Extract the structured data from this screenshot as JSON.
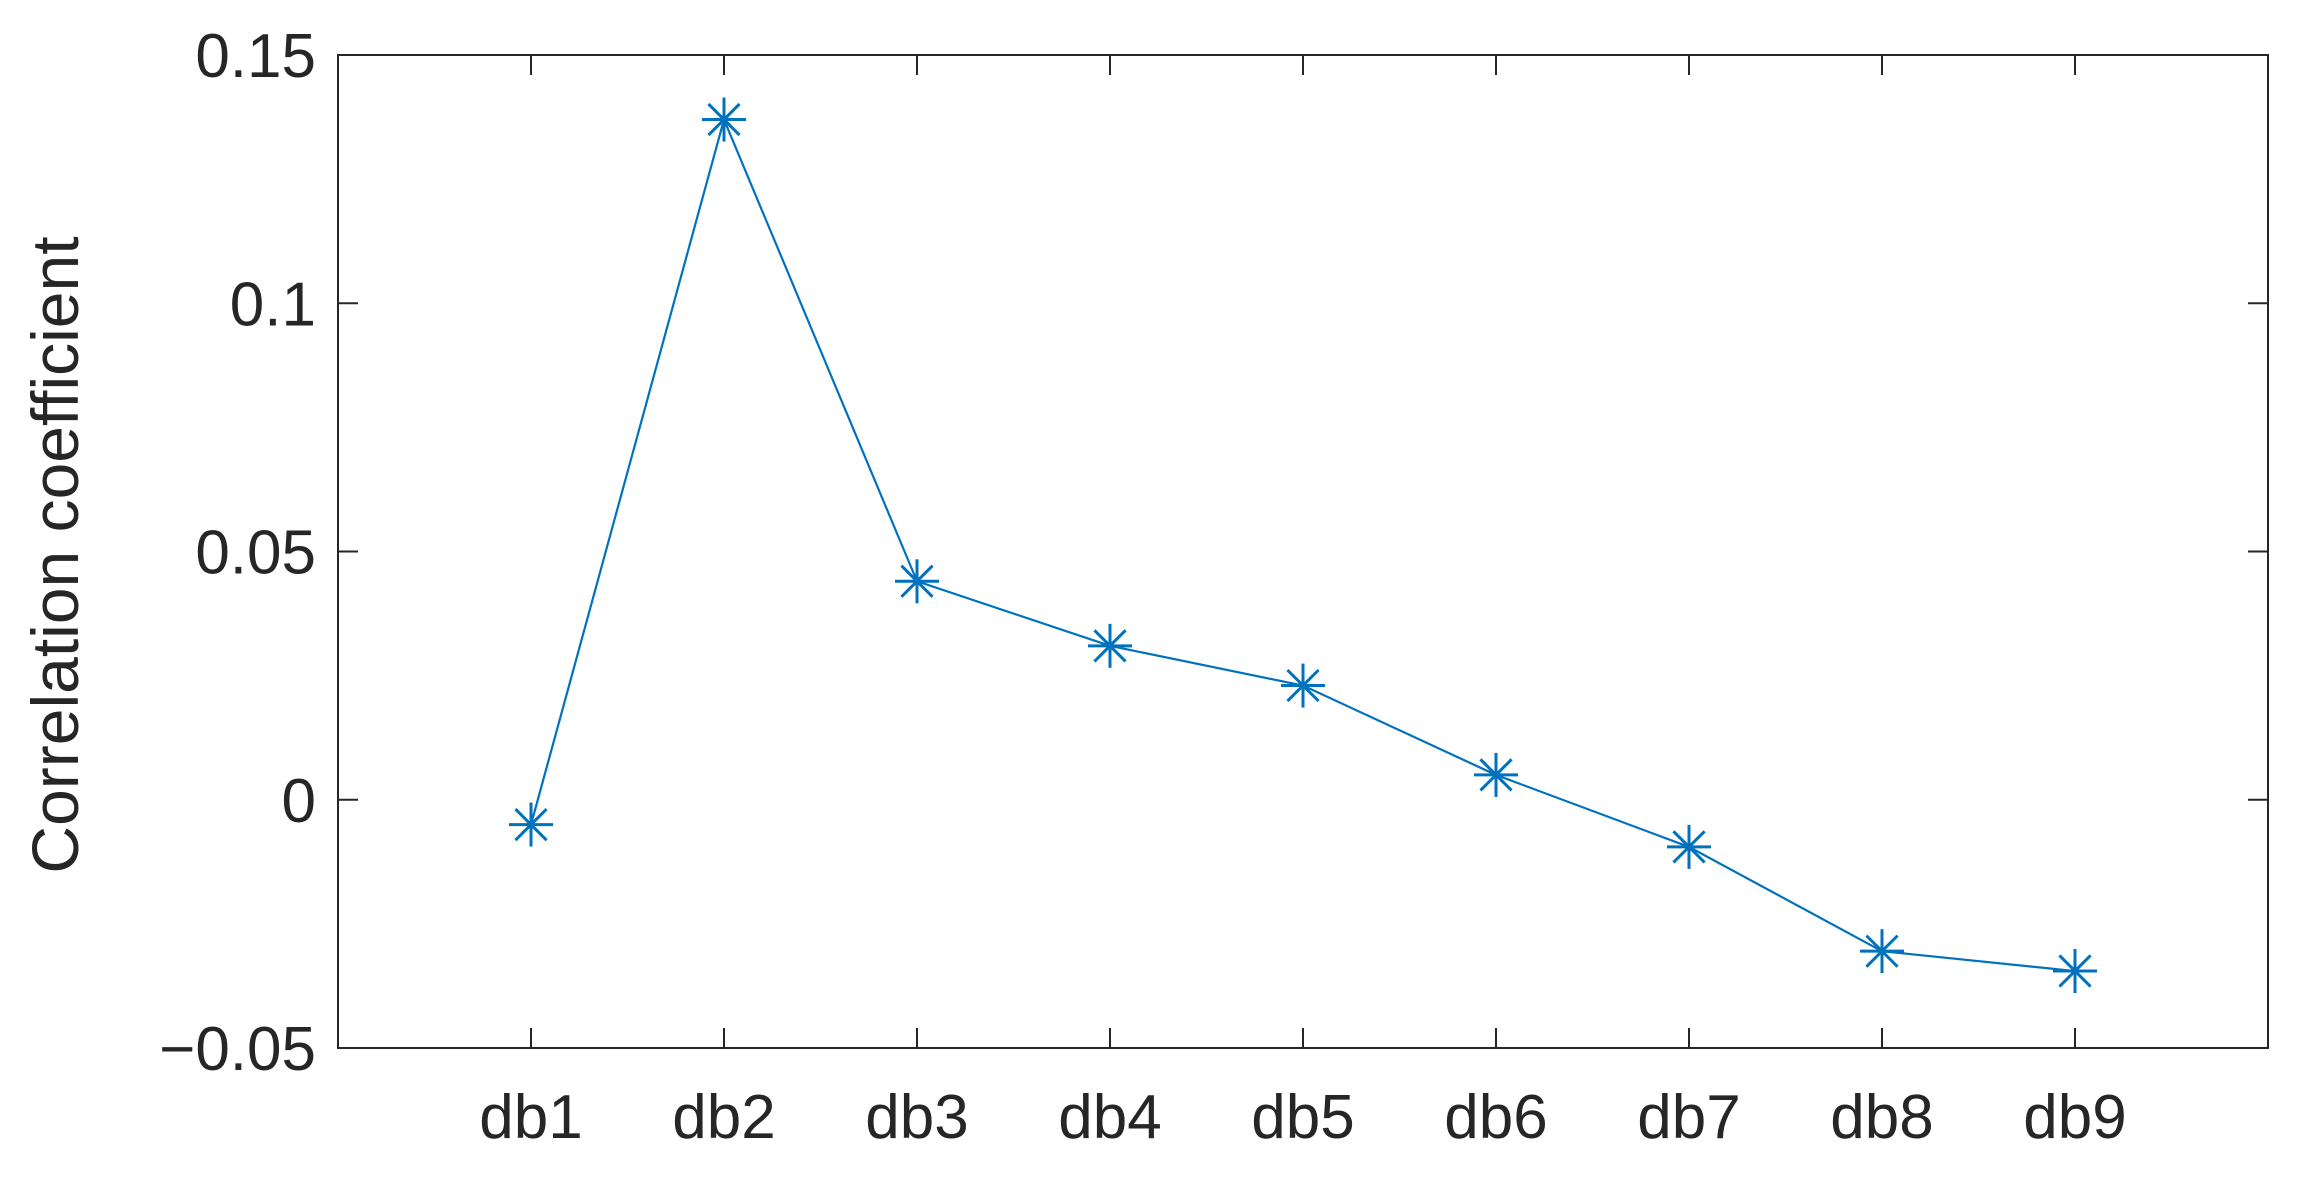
{
  "chart_data": {
    "type": "line",
    "title": "",
    "xlabel": "",
    "ylabel": "Correlation coefficient",
    "categories": [
      "db1",
      "db2",
      "db3",
      "db4",
      "db5",
      "db6",
      "db7",
      "db8",
      "db9"
    ],
    "x_range": [
      0,
      10
    ],
    "ylim": [
      -0.05,
      0.15
    ],
    "y_ticks": [
      -0.05,
      0,
      0.05,
      0.1,
      0.15
    ],
    "y_tick_labels": [
      "−0.05",
      "0",
      "0.05",
      "0.1",
      "0.15"
    ],
    "grid": false,
    "legend": "none",
    "series": [
      {
        "values": [
          -0.005,
          0.137,
          0.044,
          0.031,
          0.023,
          0.005,
          -0.0095,
          -0.0305,
          -0.0345
        ],
        "color": "#0072BD",
        "marker": "asterisk"
      }
    ]
  }
}
